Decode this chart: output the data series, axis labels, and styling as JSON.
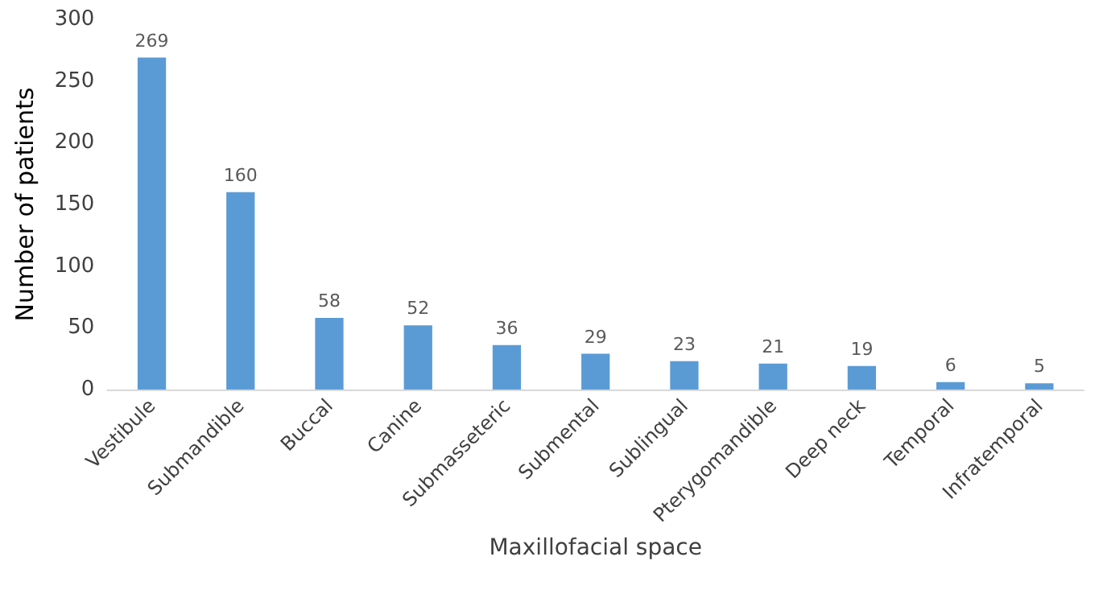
{
  "chart_data": {
    "type": "bar",
    "xlabel": "Maxillofacial space",
    "ylabel": "Number of patients",
    "categories": [
      "Vestibule",
      "Submandible",
      "Buccal",
      "Canine",
      "Submasseteric",
      "Submental",
      "Sublingual",
      "Pterygomandible",
      "Deep neck",
      "Temporal",
      "Infratemporal"
    ],
    "values": [
      269,
      160,
      58,
      52,
      36,
      29,
      23,
      21,
      19,
      6,
      5
    ],
    "color": "#5b9bd5",
    "ylim": [
      0,
      300
    ],
    "yticks": [
      0,
      50,
      100,
      150,
      200,
      250,
      300
    ],
    "grid": false,
    "data_labels": true
  }
}
